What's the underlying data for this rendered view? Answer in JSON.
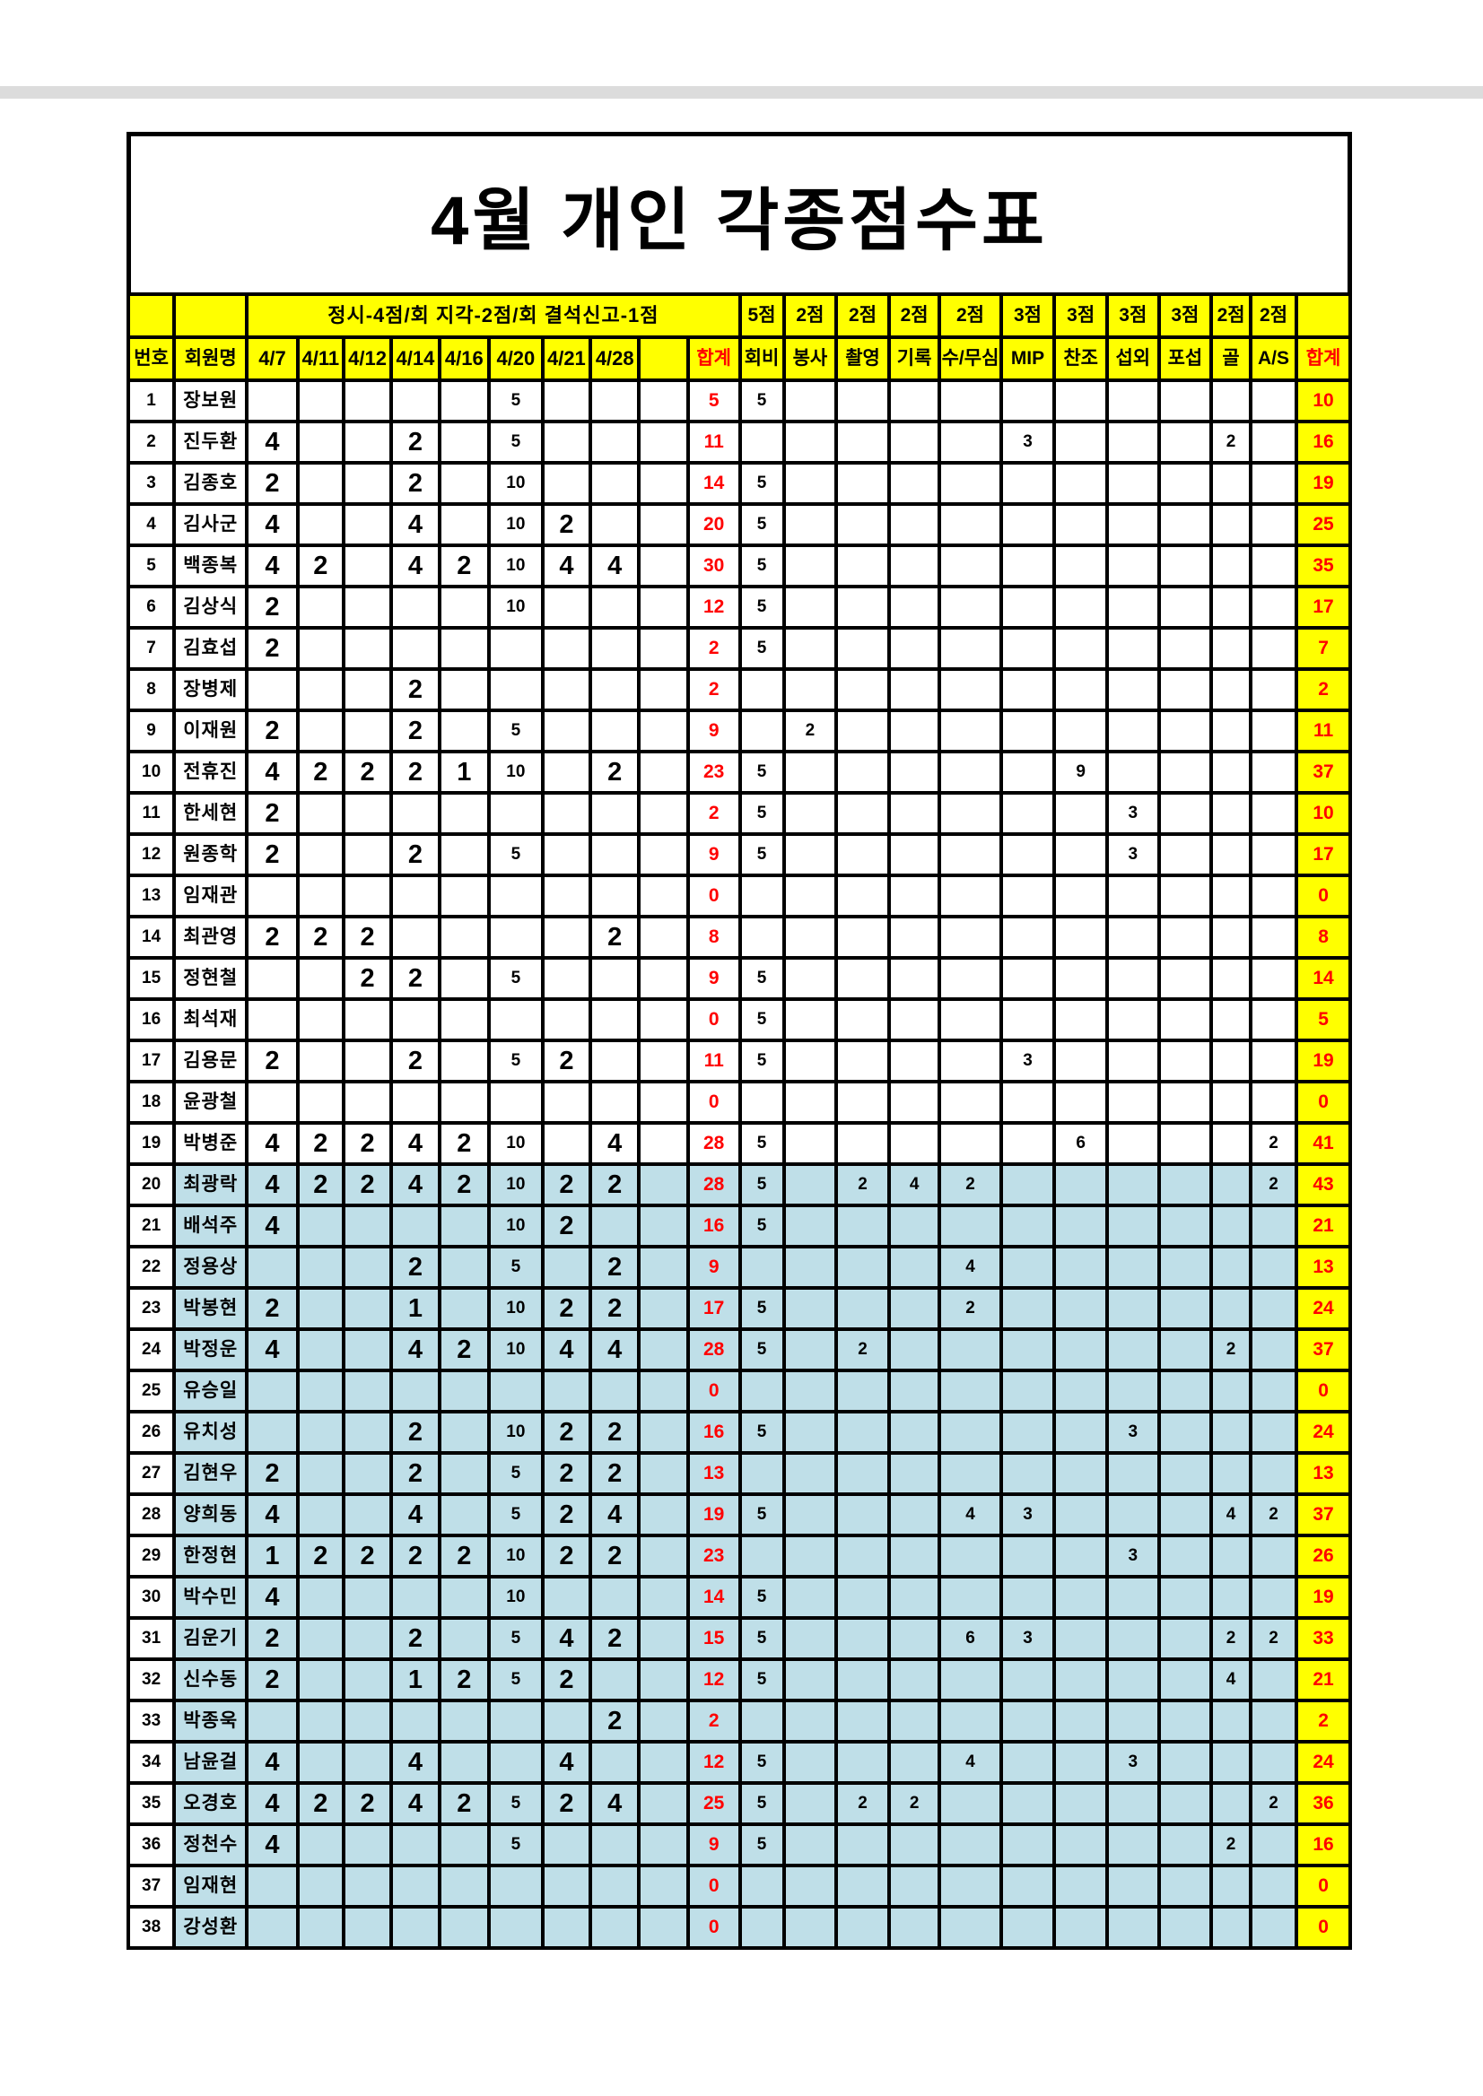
{
  "page": {
    "title": "4월 개인 각종점수표"
  },
  "table": {
    "rule_note": "정시-4점/회  지각-2점/회  결석신고-1점",
    "point_labels": [
      "5점",
      "2점",
      "2점",
      "2점",
      "2점",
      "3점",
      "3점",
      "3점",
      "3점",
      "2점",
      "2점"
    ],
    "columns": [
      "번호",
      "회원명",
      "4/7",
      "4/11",
      "4/12",
      "4/14",
      "4/16",
      "4/20",
      "4/21",
      "4/28",
      "",
      "합계",
      "회비",
      "봉사",
      "촬영",
      "기록",
      "수/무심",
      "MIP",
      "찬조",
      "섭외",
      "포섭",
      "골",
      "A/S",
      "합계"
    ],
    "extras_columns": [
      "회비",
      "봉사",
      "촬영",
      "기록",
      "수/무심",
      "MIP",
      "찬조",
      "섭외",
      "포섭",
      "골",
      "A/S"
    ],
    "rows": [
      {
        "no": "1",
        "name": "장보원",
        "scores": [
          "",
          "",
          "",
          "",
          "",
          "5",
          "",
          ""
        ],
        "sum": "5",
        "extras": [
          "5",
          "",
          "",
          "",
          "",
          "",
          "",
          "",
          "",
          "",
          ""
        ],
        "total": "10",
        "blue": false
      },
      {
        "no": "2",
        "name": "진두환",
        "scores": [
          "4",
          "",
          "",
          "2",
          "",
          "5",
          "",
          ""
        ],
        "sum": "11",
        "extras": [
          "",
          "",
          "",
          "",
          "",
          "3",
          "",
          "",
          "",
          "2",
          ""
        ],
        "total": "16",
        "blue": false
      },
      {
        "no": "3",
        "name": "김종호",
        "scores": [
          "2",
          "",
          "",
          "2",
          "",
          "10",
          "",
          ""
        ],
        "sum": "14",
        "extras": [
          "5",
          "",
          "",
          "",
          "",
          "",
          "",
          "",
          "",
          "",
          ""
        ],
        "total": "19",
        "blue": false
      },
      {
        "no": "4",
        "name": "김사군",
        "scores": [
          "4",
          "",
          "",
          "4",
          "",
          "10",
          "2",
          ""
        ],
        "sum": "20",
        "extras": [
          "5",
          "",
          "",
          "",
          "",
          "",
          "",
          "",
          "",
          "",
          ""
        ],
        "total": "25",
        "blue": false
      },
      {
        "no": "5",
        "name": "백종복",
        "scores": [
          "4",
          "2",
          "",
          "4",
          "2",
          "10",
          "4",
          "4"
        ],
        "sum": "30",
        "extras": [
          "5",
          "",
          "",
          "",
          "",
          "",
          "",
          "",
          "",
          "",
          ""
        ],
        "total": "35",
        "blue": false
      },
      {
        "no": "6",
        "name": "김상식",
        "scores": [
          "2",
          "",
          "",
          "",
          "",
          "10",
          "",
          ""
        ],
        "sum": "12",
        "extras": [
          "5",
          "",
          "",
          "",
          "",
          "",
          "",
          "",
          "",
          "",
          ""
        ],
        "total": "17",
        "blue": false
      },
      {
        "no": "7",
        "name": "김효섭",
        "scores": [
          "2",
          "",
          "",
          "",
          "",
          "",
          "",
          ""
        ],
        "sum": "2",
        "extras": [
          "5",
          "",
          "",
          "",
          "",
          "",
          "",
          "",
          "",
          "",
          ""
        ],
        "total": "7",
        "blue": false
      },
      {
        "no": "8",
        "name": "장병제",
        "scores": [
          "",
          "",
          "",
          "2",
          "",
          "",
          "",
          ""
        ],
        "sum": "2",
        "extras": [
          "",
          "",
          "",
          "",
          "",
          "",
          "",
          "",
          "",
          "",
          ""
        ],
        "total": "2",
        "blue": false
      },
      {
        "no": "9",
        "name": "이재원",
        "scores": [
          "2",
          "",
          "",
          "2",
          "",
          "5",
          "",
          ""
        ],
        "sum": "9",
        "extras": [
          "",
          "2",
          "",
          "",
          "",
          "",
          "",
          "",
          "",
          "",
          ""
        ],
        "total": "11",
        "blue": false
      },
      {
        "no": "10",
        "name": "전휴진",
        "scores": [
          "4",
          "2",
          "2",
          "2",
          "1",
          "10",
          "",
          "2"
        ],
        "sum": "23",
        "extras": [
          "5",
          "",
          "",
          "",
          "",
          "",
          "9",
          "",
          "",
          "",
          ""
        ],
        "total": "37",
        "blue": false
      },
      {
        "no": "11",
        "name": "한세현",
        "scores": [
          "2",
          "",
          "",
          "",
          "",
          "",
          "",
          ""
        ],
        "sum": "2",
        "extras": [
          "5",
          "",
          "",
          "",
          "",
          "",
          "",
          "3",
          "",
          "",
          ""
        ],
        "total": "10",
        "blue": false
      },
      {
        "no": "12",
        "name": "원종학",
        "scores": [
          "2",
          "",
          "",
          "2",
          "",
          "5",
          "",
          ""
        ],
        "sum": "9",
        "extras": [
          "5",
          "",
          "",
          "",
          "",
          "",
          "",
          "3",
          "",
          "",
          ""
        ],
        "total": "17",
        "blue": false
      },
      {
        "no": "13",
        "name": "임재관",
        "scores": [
          "",
          "",
          "",
          "",
          "",
          "",
          "",
          ""
        ],
        "sum": "0",
        "extras": [
          "",
          "",
          "",
          "",
          "",
          "",
          "",
          "",
          "",
          "",
          ""
        ],
        "total": "0",
        "blue": false
      },
      {
        "no": "14",
        "name": "최관영",
        "scores": [
          "2",
          "2",
          "2",
          "",
          "",
          "",
          "",
          "2"
        ],
        "sum": "8",
        "extras": [
          "",
          "",
          "",
          "",
          "",
          "",
          "",
          "",
          "",
          "",
          ""
        ],
        "total": "8",
        "blue": false
      },
      {
        "no": "15",
        "name": "정현철",
        "scores": [
          "",
          "",
          "2",
          "2",
          "",
          "5",
          "",
          ""
        ],
        "sum": "9",
        "extras": [
          "5",
          "",
          "",
          "",
          "",
          "",
          "",
          "",
          "",
          "",
          ""
        ],
        "total": "14",
        "blue": false
      },
      {
        "no": "16",
        "name": "최석재",
        "scores": [
          "",
          "",
          "",
          "",
          "",
          "",
          "",
          ""
        ],
        "sum": "0",
        "extras": [
          "5",
          "",
          "",
          "",
          "",
          "",
          "",
          "",
          "",
          "",
          ""
        ],
        "total": "5",
        "blue": false
      },
      {
        "no": "17",
        "name": "김용문",
        "scores": [
          "2",
          "",
          "",
          "2",
          "",
          "5",
          "2",
          ""
        ],
        "sum": "11",
        "extras": [
          "5",
          "",
          "",
          "",
          "",
          "3",
          "",
          "",
          "",
          "",
          ""
        ],
        "total": "19",
        "blue": false
      },
      {
        "no": "18",
        "name": "윤광철",
        "scores": [
          "",
          "",
          "",
          "",
          "",
          "",
          "",
          ""
        ],
        "sum": "0",
        "extras": [
          "",
          "",
          "",
          "",
          "",
          "",
          "",
          "",
          "",
          "",
          ""
        ],
        "total": "0",
        "blue": false
      },
      {
        "no": "19",
        "name": "박병준",
        "scores": [
          "4",
          "2",
          "2",
          "4",
          "2",
          "10",
          "",
          "4"
        ],
        "sum": "28",
        "extras": [
          "5",
          "",
          "",
          "",
          "",
          "",
          "6",
          "",
          "",
          "",
          "2"
        ],
        "total": "41",
        "blue": false
      },
      {
        "no": "20",
        "name": "최광락",
        "scores": [
          "4",
          "2",
          "2",
          "4",
          "2",
          "10",
          "2",
          "2"
        ],
        "sum": "28",
        "extras": [
          "5",
          "",
          "2",
          "4",
          "2",
          "",
          "",
          "",
          "",
          "",
          "2"
        ],
        "total": "43",
        "blue": true
      },
      {
        "no": "21",
        "name": "배석주",
        "scores": [
          "4",
          "",
          "",
          "",
          "",
          "10",
          "2",
          ""
        ],
        "sum": "16",
        "extras": [
          "5",
          "",
          "",
          "",
          "",
          "",
          "",
          "",
          "",
          "",
          ""
        ],
        "total": "21",
        "blue": true
      },
      {
        "no": "22",
        "name": "정용상",
        "scores": [
          "",
          "",
          "",
          "2",
          "",
          "5",
          "",
          "2"
        ],
        "sum": "9",
        "extras": [
          "",
          "",
          "",
          "",
          "4",
          "",
          "",
          "",
          "",
          "",
          ""
        ],
        "total": "13",
        "blue": true
      },
      {
        "no": "23",
        "name": "박봉현",
        "scores": [
          "2",
          "",
          "",
          "1",
          "",
          "10",
          "2",
          "2"
        ],
        "sum": "17",
        "extras": [
          "5",
          "",
          "",
          "",
          "2",
          "",
          "",
          "",
          "",
          "",
          ""
        ],
        "total": "24",
        "blue": true
      },
      {
        "no": "24",
        "name": "박정운",
        "scores": [
          "4",
          "",
          "",
          "4",
          "2",
          "10",
          "4",
          "4"
        ],
        "sum": "28",
        "extras": [
          "5",
          "",
          "2",
          "",
          "",
          "",
          "",
          "",
          "",
          "2",
          ""
        ],
        "total": "37",
        "blue": true
      },
      {
        "no": "25",
        "name": "유승일",
        "scores": [
          "",
          "",
          "",
          "",
          "",
          "",
          "",
          ""
        ],
        "sum": "0",
        "extras": [
          "",
          "",
          "",
          "",
          "",
          "",
          "",
          "",
          "",
          "",
          ""
        ],
        "total": "0",
        "blue": true
      },
      {
        "no": "26",
        "name": "유치성",
        "scores": [
          "",
          "",
          "",
          "2",
          "",
          "10",
          "2",
          "2"
        ],
        "sum": "16",
        "extras": [
          "5",
          "",
          "",
          "",
          "",
          "",
          "",
          "3",
          "",
          "",
          ""
        ],
        "total": "24",
        "blue": true
      },
      {
        "no": "27",
        "name": "김현우",
        "scores": [
          "2",
          "",
          "",
          "2",
          "",
          "5",
          "2",
          "2"
        ],
        "sum": "13",
        "extras": [
          "",
          "",
          "",
          "",
          "",
          "",
          "",
          "",
          "",
          "",
          ""
        ],
        "total": "13",
        "blue": true
      },
      {
        "no": "28",
        "name": "양희동",
        "scores": [
          "4",
          "",
          "",
          "4",
          "",
          "5",
          "2",
          "4"
        ],
        "sum": "19",
        "extras": [
          "5",
          "",
          "",
          "",
          "4",
          "3",
          "",
          "",
          "",
          "4",
          "2"
        ],
        "total": "37",
        "blue": true
      },
      {
        "no": "29",
        "name": "한정현",
        "scores": [
          "1",
          "2",
          "2",
          "2",
          "2",
          "10",
          "2",
          "2"
        ],
        "sum": "23",
        "extras": [
          "",
          "",
          "",
          "",
          "",
          "",
          "",
          "3",
          "",
          "",
          ""
        ],
        "total": "26",
        "blue": true
      },
      {
        "no": "30",
        "name": "박수민",
        "scores": [
          "4",
          "",
          "",
          "",
          "",
          "10",
          "",
          ""
        ],
        "sum": "14",
        "extras": [
          "5",
          "",
          "",
          "",
          "",
          "",
          "",
          "",
          "",
          "",
          ""
        ],
        "total": "19",
        "blue": true
      },
      {
        "no": "31",
        "name": "김운기",
        "scores": [
          "2",
          "",
          "",
          "2",
          "",
          "5",
          "4",
          "2"
        ],
        "sum": "15",
        "extras": [
          "5",
          "",
          "",
          "",
          "6",
          "3",
          "",
          "",
          "",
          "2",
          "2"
        ],
        "total": "33",
        "blue": true
      },
      {
        "no": "32",
        "name": "신수동",
        "scores": [
          "2",
          "",
          "",
          "1",
          "2",
          "5",
          "2",
          ""
        ],
        "sum": "12",
        "extras": [
          "5",
          "",
          "",
          "",
          "",
          "",
          "",
          "",
          "",
          "4",
          ""
        ],
        "total": "21",
        "blue": true
      },
      {
        "no": "33",
        "name": "박종욱",
        "scores": [
          "",
          "",
          "",
          "",
          "",
          "",
          "",
          "2"
        ],
        "sum": "2",
        "extras": [
          "",
          "",
          "",
          "",
          "",
          "",
          "",
          "",
          "",
          "",
          ""
        ],
        "total": "2",
        "blue": true
      },
      {
        "no": "34",
        "name": "남윤걸",
        "scores": [
          "4",
          "",
          "",
          "4",
          "",
          "",
          "4",
          ""
        ],
        "sum": "12",
        "extras": [
          "5",
          "",
          "",
          "",
          "4",
          "",
          "",
          "3",
          "",
          "",
          ""
        ],
        "total": "24",
        "blue": true
      },
      {
        "no": "35",
        "name": "오경호",
        "scores": [
          "4",
          "2",
          "2",
          "4",
          "2",
          "5",
          "2",
          "4"
        ],
        "sum": "25",
        "extras": [
          "5",
          "",
          "2",
          "2",
          "",
          "",
          "",
          "",
          "",
          "",
          "2"
        ],
        "total": "36",
        "blue": true
      },
      {
        "no": "36",
        "name": "정천수",
        "scores": [
          "4",
          "",
          "",
          "",
          "",
          "5",
          "",
          ""
        ],
        "sum": "9",
        "extras": [
          "5",
          "",
          "",
          "",
          "",
          "",
          "",
          "",
          "",
          "2",
          ""
        ],
        "total": "16",
        "blue": true
      },
      {
        "no": "37",
        "name": "임재현",
        "scores": [
          "",
          "",
          "",
          "",
          "",
          "",
          "",
          ""
        ],
        "sum": "0",
        "extras": [
          "",
          "",
          "",
          "",
          "",
          "",
          "",
          "",
          "",
          "",
          ""
        ],
        "total": "0",
        "blue": true
      },
      {
        "no": "38",
        "name": "강성환",
        "scores": [
          "",
          "",
          "",
          "",
          "",
          "",
          "",
          ""
        ],
        "sum": "0",
        "extras": [
          "",
          "",
          "",
          "",
          "",
          "",
          "",
          "",
          "",
          "",
          ""
        ],
        "total": "0",
        "blue": true
      }
    ]
  }
}
